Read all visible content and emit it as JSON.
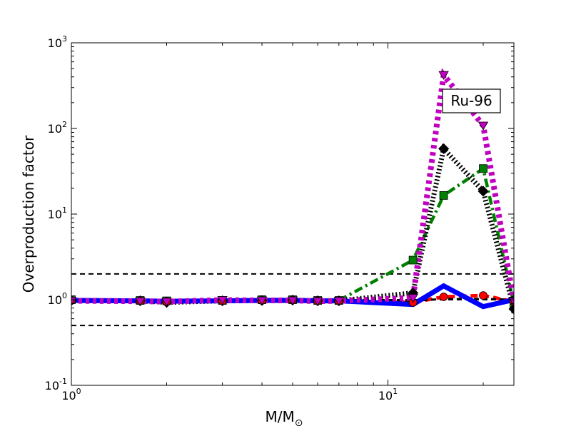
{
  "chart_data": {
    "type": "line",
    "x_scale": "log",
    "y_scale": "log",
    "xlim": [
      1,
      25
    ],
    "ylim": [
      0.1,
      1000
    ],
    "xlabel_base": "M/M",
    "xlabel_sub": "⊙",
    "ylabel": "Overproduction factor",
    "annotation": "Ru-96",
    "x_ticks": [
      {
        "value": 1,
        "base": "10",
        "exp": "0"
      },
      {
        "value": 10,
        "base": "10",
        "exp": "1"
      }
    ],
    "y_ticks": [
      {
        "value": 0.1,
        "base": "10",
        "exp": "-1"
      },
      {
        "value": 1,
        "base": "10",
        "exp": "0"
      },
      {
        "value": 10,
        "base": "10",
        "exp": "1"
      },
      {
        "value": 100,
        "base": "10",
        "exp": "2"
      },
      {
        "value": 1000,
        "base": "10",
        "exp": "3"
      }
    ],
    "reference_lines": [
      0.5,
      1.0,
      2.0
    ],
    "series": [
      {
        "color": "#008000",
        "style": "dashdot",
        "marker": "square",
        "x": [
          1,
          1.65,
          2,
          3,
          4,
          5,
          6,
          7,
          12,
          15,
          20,
          25
        ],
        "y": [
          1.0,
          0.98,
          0.97,
          0.98,
          1.0,
          1.0,
          0.98,
          0.98,
          2.9,
          16.5,
          34,
          0.9
        ]
      },
      {
        "color": "#000000",
        "style": "dotted-hatched",
        "marker": "diamond",
        "x": [
          1,
          1.65,
          2,
          3,
          4,
          5,
          6,
          7,
          12,
          15,
          20,
          25
        ],
        "y": [
          0.98,
          0.97,
          0.93,
          0.97,
          0.98,
          0.99,
          0.97,
          0.97,
          1.2,
          58,
          18.5,
          0.78
        ]
      },
      {
        "color": "#ff0000",
        "style": "dashed",
        "marker": "circle",
        "x": [
          1,
          1.65,
          2,
          3,
          4,
          5,
          6,
          7,
          12,
          15,
          20,
          25
        ],
        "y": [
          0.98,
          0.97,
          0.95,
          0.97,
          0.98,
          0.99,
          0.97,
          0.97,
          0.93,
          1.08,
          1.12,
          0.95
        ]
      },
      {
        "color": "#000000",
        "style": "dashed-thin",
        "marker": "none",
        "x": [
          1,
          1.65,
          2,
          3,
          4,
          5,
          6,
          7,
          12,
          15,
          20,
          25
        ],
        "y": [
          0.97,
          0.97,
          0.96,
          0.97,
          0.97,
          0.97,
          0.97,
          0.97,
          0.97,
          1.02,
          1.02,
          1.0
        ]
      },
      {
        "color": "#0000ff",
        "style": "solid",
        "marker": "none",
        "x": [
          1,
          1.65,
          2,
          3,
          4,
          5,
          6,
          7,
          12,
          15,
          20,
          25
        ],
        "y": [
          0.98,
          0.97,
          0.96,
          0.97,
          0.98,
          0.98,
          0.97,
          0.97,
          0.88,
          1.45,
          0.83,
          1.0
        ]
      },
      {
        "color": "#bf00bf",
        "style": "dotted-thick",
        "marker": "triangle-down",
        "x": [
          1,
          1.65,
          2,
          3,
          4,
          5,
          6,
          7,
          12,
          15,
          20,
          25
        ],
        "y": [
          0.97,
          0.96,
          0.95,
          0.99,
          0.98,
          0.98,
          0.96,
          0.97,
          1.05,
          420,
          108,
          0.95
        ]
      }
    ]
  }
}
